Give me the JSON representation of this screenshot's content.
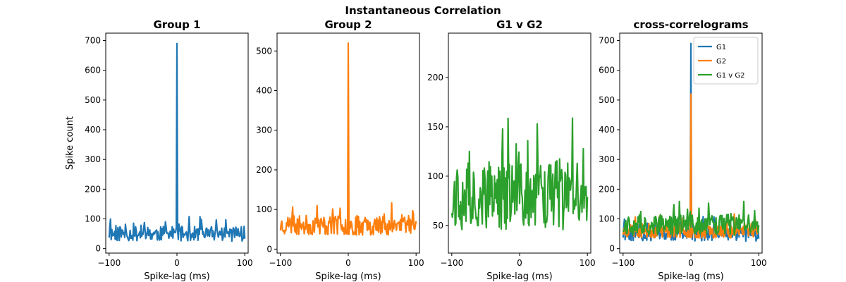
{
  "figure": {
    "suptitle": "Instantaneous Correlation"
  },
  "colors": {
    "g1": "#1f77b4",
    "g2": "#ff7f0e",
    "g1vg2": "#2ca02c"
  },
  "chart_data": [
    {
      "type": "line",
      "title": "Group 1",
      "xlabel": "Spike-lag (ms)",
      "ylabel": "Spike count",
      "xlim": [
        -105,
        105
      ],
      "ylim": [
        -15,
        725
      ],
      "xticks": [
        -100,
        0,
        100
      ],
      "yticks": [
        0,
        100,
        200,
        300,
        400,
        500,
        600,
        700
      ],
      "series": [
        {
          "color": "#1f77b4",
          "seed": 11,
          "base": 50,
          "amp": 25,
          "spike_frac": 0.12,
          "spike_amp": 45,
          "peak": 690
        }
      ]
    },
    {
      "type": "line",
      "title": "Group 2",
      "xlabel": "Spike-lag (ms)",
      "ylabel": "",
      "xlim": [
        -105,
        105
      ],
      "ylim": [
        -10,
        545
      ],
      "xticks": [
        -100,
        0,
        100
      ],
      "yticks": [
        0,
        100,
        200,
        300,
        400,
        500
      ],
      "series": [
        {
          "color": "#ff7f0e",
          "seed": 23,
          "base": 60,
          "amp": 25,
          "spike_frac": 0.12,
          "spike_amp": 45,
          "peak": 520
        }
      ]
    },
    {
      "type": "line",
      "title": "G1 v G2",
      "xlabel": "Spike-lag (ms)",
      "ylabel": "",
      "xlim": [
        -105,
        105
      ],
      "ylim": [
        22,
        245
      ],
      "xticks": [
        -100,
        0,
        100
      ],
      "yticks": [
        50,
        100,
        150,
        200
      ],
      "series": [
        {
          "color": "#2ca02c",
          "seed": 37,
          "base": 80,
          "amp": 35,
          "spike_frac": 0.15,
          "spike_amp": 60,
          "peak": null
        }
      ]
    },
    {
      "type": "line",
      "title": "cross-correlograms",
      "xlabel": "Spike-lag (ms)",
      "ylabel": "",
      "xlim": [
        -105,
        105
      ],
      "ylim": [
        -15,
        725
      ],
      "xticks": [
        -100,
        0,
        100
      ],
      "yticks": [
        0,
        100,
        200,
        300,
        400,
        500,
        600,
        700
      ],
      "legend": {
        "position": "top-right",
        "entries": [
          "G1",
          "G2",
          "G1 v G2"
        ]
      },
      "series": [
        {
          "name": "G1",
          "color": "#1f77b4",
          "seed": 11,
          "base": 50,
          "amp": 25,
          "spike_frac": 0.12,
          "spike_amp": 45,
          "peak": 690
        },
        {
          "name": "G2",
          "color": "#ff7f0e",
          "seed": 23,
          "base": 60,
          "amp": 25,
          "spike_frac": 0.12,
          "spike_amp": 45,
          "peak": 520
        },
        {
          "name": "G1 v G2",
          "color": "#2ca02c",
          "seed": 37,
          "base": 80,
          "amp": 35,
          "spike_frac": 0.15,
          "spike_amp": 60,
          "peak": null
        }
      ]
    }
  ]
}
